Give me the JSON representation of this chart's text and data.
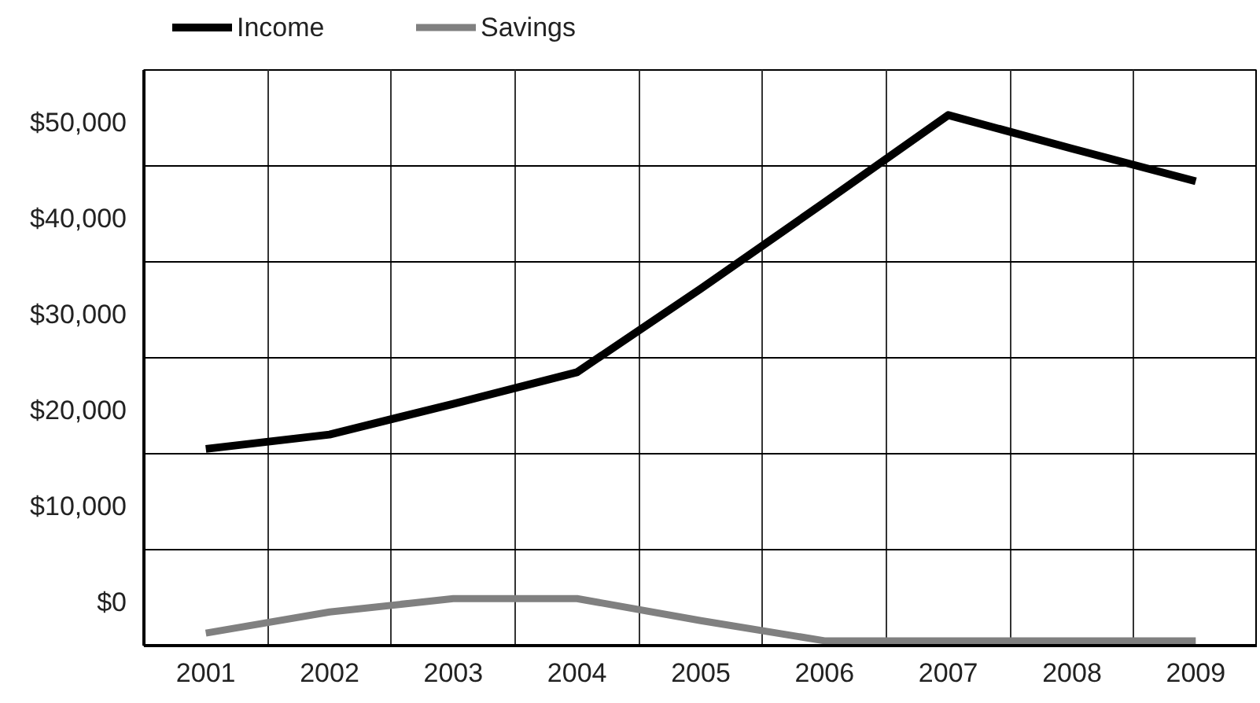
{
  "chart_data": {
    "type": "line",
    "categories": [
      "2001",
      "2002",
      "2003",
      "2004",
      "2005",
      "2006",
      "2007",
      "2008",
      "2009"
    ],
    "series": [
      {
        "name": "Income",
        "color": "#000000",
        "values": [
          16000,
          17500,
          20700,
          24000,
          32700,
          41700,
          50800,
          47300,
          43900
        ]
      },
      {
        "name": "Savings",
        "color": "#808080",
        "values": [
          -3200,
          -1000,
          400,
          400,
          -1900,
          -4000,
          -4000,
          -4000,
          -4000
        ]
      }
    ],
    "ylim": [
      -4500,
      55500
    ],
    "yticks": [
      {
        "value": -4500,
        "label": null
      },
      {
        "value": 0,
        "label": "$0"
      },
      {
        "value": 5500,
        "label": null
      },
      {
        "value": 10000,
        "label": "$10,000"
      },
      {
        "value": 15500,
        "label": null
      },
      {
        "value": 20000,
        "label": "$20,000"
      },
      {
        "value": 25500,
        "label": null
      },
      {
        "value": 30000,
        "label": "$30,000"
      },
      {
        "value": 35500,
        "label": null
      },
      {
        "value": 40000,
        "label": "$40,000"
      },
      {
        "value": 45500,
        "label": null
      },
      {
        "value": 50000,
        "label": "$50,000"
      }
    ],
    "grid": true,
    "legend": "top left",
    "marker": "none",
    "line_style": "solid"
  }
}
